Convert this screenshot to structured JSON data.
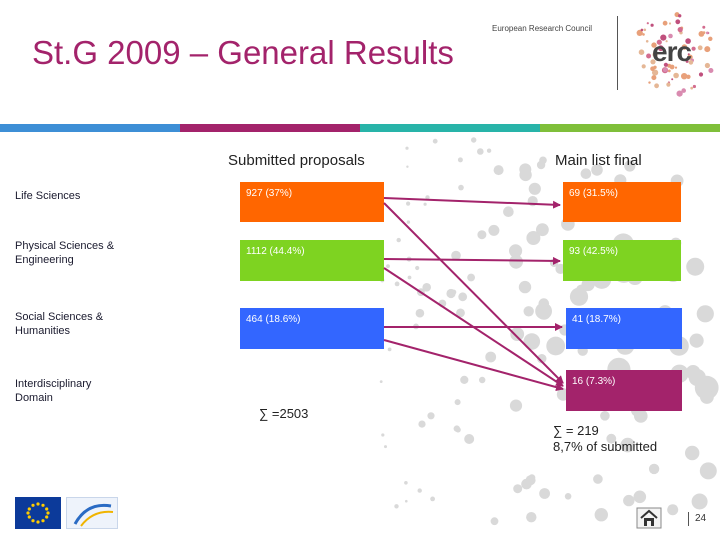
{
  "header": {
    "title": "St.G 2009 – General Results",
    "org_tagline": "European Research Council",
    "logo_text": "erc"
  },
  "colors": {
    "title": "#a3236b",
    "stripes": [
      "#3d8fd6",
      "#a3236b",
      "#28b4a9",
      "#7fbf3a",
      "#a3236b"
    ],
    "life_sciences": "#ff6600",
    "physical_sciences": "#7ed321",
    "social_sciences": "#3366ff",
    "interdisciplinary": "#a3236b",
    "arrows": "#a3236b"
  },
  "columns": {
    "submitted": "Submitted proposals",
    "main_list": "Main list final"
  },
  "rows": [
    {
      "label": "Life Sciences",
      "submitted": "927 (37%)",
      "main_list": "69 (31.5%)"
    },
    {
      "label": "Physical Sciences & Engineering",
      "submitted": "1112 (44.4%)",
      "main_list": "93 (42.5%)"
    },
    {
      "label": "Social Sciences & Humanities",
      "submitted": "464 (18.6%)",
      "main_list": "41 (18.7%)"
    },
    {
      "label": "Interdisciplinary Domain",
      "submitted": "",
      "main_list": "16 (7.3%)"
    }
  ],
  "totals": {
    "submitted": "∑ =2503",
    "main_list_line1": "∑ = 219",
    "main_list_line2": "8,7% of submitted"
  },
  "footer": {
    "page_number": "24",
    "home_icon": "home-icon",
    "logos": [
      "eu-flag-logo",
      "fp7-logo"
    ]
  }
}
